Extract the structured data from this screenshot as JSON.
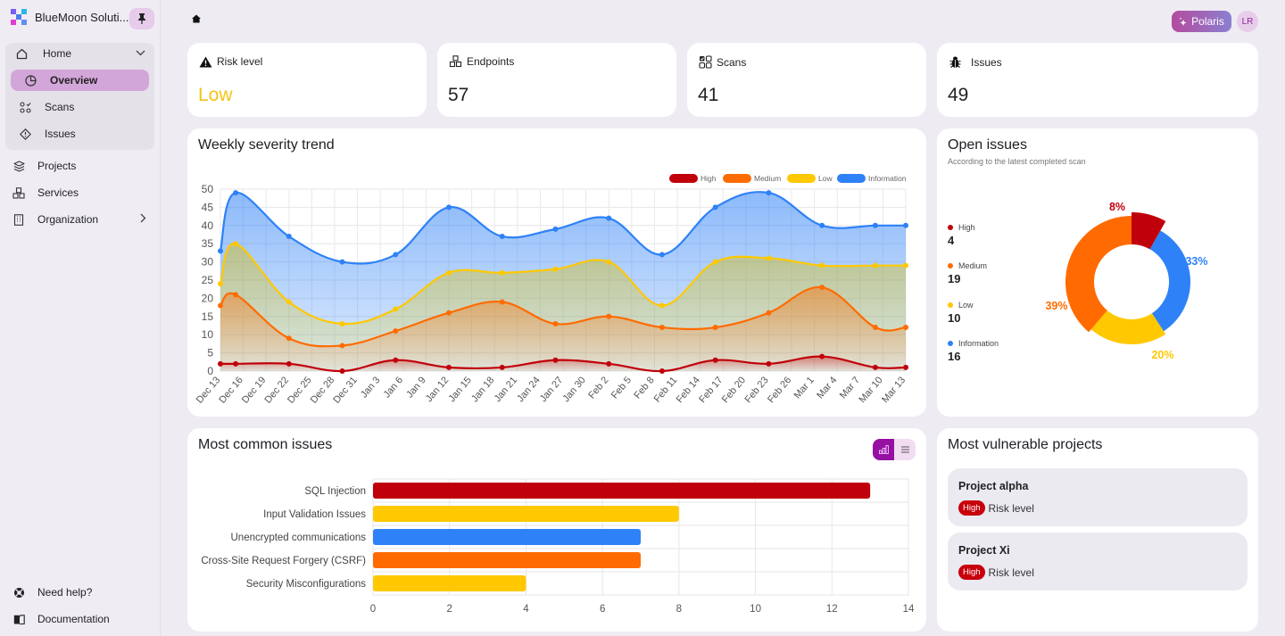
{
  "sidebar": {
    "brand": "BlueMoon Soluti...",
    "pin_icon": "pin-icon",
    "home": {
      "label": "Home",
      "icon": "home-icon",
      "expanded": true
    },
    "sub_items": [
      {
        "label": "Overview",
        "icon": "pie-chart-icon",
        "active": true
      },
      {
        "label": "Scans",
        "icon": "scans-icon",
        "active": false
      },
      {
        "label": "Issues",
        "icon": "diamond-alert-icon",
        "active": false
      }
    ],
    "items": [
      {
        "label": "Projects",
        "icon": "layers-icon"
      },
      {
        "label": "Services",
        "icon": "cubes-icon"
      },
      {
        "label": "Organization",
        "icon": "building-icon",
        "has_children": true
      }
    ],
    "footer": [
      {
        "label": "Need help?",
        "icon": "lifebuoy-icon"
      },
      {
        "label": "Documentation",
        "icon": "book-icon"
      }
    ]
  },
  "header": {
    "breadcrumb_icon": "home-icon",
    "polaris_label": "Polaris",
    "avatar_initials": "LR"
  },
  "kpis": [
    {
      "label": "Risk level",
      "icon": "warning-icon",
      "value": "Low"
    },
    {
      "label": "Endpoints",
      "icon": "cubes-icon",
      "value": "57"
    },
    {
      "label": "Scans",
      "icon": "scans-icon",
      "value": "41"
    },
    {
      "label": "Issues",
      "icon": "bug-icon",
      "value": "49"
    }
  ],
  "colors": {
    "high": "#c0000a",
    "medium": "#ff6b00",
    "low": "#ffc800",
    "information": "#2e81f7",
    "accent": "#9610a4"
  },
  "trend": {
    "title": "Weekly severity trend"
  },
  "open_issues": {
    "title": "Open issues",
    "subtitle": "According to the latest completed scan",
    "items": [
      {
        "label": "High",
        "value": "4"
      },
      {
        "label": "Medium",
        "value": "19"
      },
      {
        "label": "Low",
        "value": "10"
      },
      {
        "label": "Information",
        "value": "16"
      }
    ]
  },
  "common_issues": {
    "title": "Most common issues",
    "view_toggle": [
      "chart",
      "list"
    ]
  },
  "vulnerable_projects": {
    "title": "Most vulnerable projects",
    "items": [
      {
        "name": "Project alpha",
        "badge": "High",
        "label": "Risk level"
      },
      {
        "name": "Project Xi",
        "badge": "High",
        "label": "Risk level"
      }
    ]
  },
  "chart_data": [
    {
      "type": "area",
      "title": "Weekly severity trend",
      "xlabel": "",
      "ylabel": "",
      "ylim": [
        0,
        50
      ],
      "yticks": [
        0,
        5,
        10,
        15,
        20,
        25,
        30,
        35,
        40,
        45,
        50
      ],
      "x_tick_labels": [
        "Dec 13",
        "Dec 16",
        "Dec 19",
        "Dec 22",
        "Dec 25",
        "Dec 28",
        "Dec 31",
        "Jan 3",
        "Jan 6",
        "Jan 9",
        "Jan 12",
        "Jan 15",
        "Jan 18",
        "Jan 21",
        "Jan 24",
        "Jan 27",
        "Jan 30",
        "Feb 2",
        "Feb 5",
        "Feb 8",
        "Feb 11",
        "Feb 14",
        "Feb 17",
        "Feb 20",
        "Feb 23",
        "Feb 26",
        "Mar 1",
        "Mar 4",
        "Mar 7",
        "Mar 10",
        "Mar 13"
      ],
      "x_day_offsets": [
        0,
        2,
        9,
        16,
        23,
        30,
        37,
        44,
        51,
        58,
        65,
        72,
        79,
        86,
        90
      ],
      "legend": [
        "High",
        "Medium",
        "Low",
        "Information"
      ],
      "legend_position": "top-right",
      "grid": true,
      "series": [
        {
          "name": "Information",
          "values": [
            33,
            49,
            37,
            30,
            32,
            45,
            37,
            39,
            42,
            32,
            45,
            49,
            40,
            40,
            40
          ]
        },
        {
          "name": "Low",
          "values": [
            24,
            35,
            19,
            13,
            17,
            27,
            27,
            28,
            30,
            18,
            30,
            31,
            29,
            29,
            29
          ]
        },
        {
          "name": "Medium",
          "values": [
            18,
            21,
            9,
            7,
            11,
            16,
            19,
            13,
            15,
            12,
            12,
            16,
            23,
            12,
            12
          ]
        },
        {
          "name": "High",
          "values": [
            2,
            2,
            2,
            0,
            3,
            1,
            1,
            3,
            2,
            0,
            3,
            2,
            4,
            1,
            1
          ]
        }
      ]
    },
    {
      "type": "pie",
      "title": "Open issues",
      "categories": [
        "High",
        "Information",
        "Low",
        "Medium"
      ],
      "values": [
        4,
        16,
        10,
        19
      ],
      "percent_labels": [
        "8%",
        "33%",
        "20%",
        "39%"
      ]
    },
    {
      "type": "bar",
      "orientation": "horizontal",
      "title": "Most common issues",
      "categories": [
        "SQL Injection",
        "Input Validation Issues",
        "Unencrypted communications",
        "Cross-Site Request Forgery (CSRF)",
        "Security Misconfigurations"
      ],
      "values": [
        13,
        8,
        7,
        7,
        4
      ],
      "bar_severity": [
        "high",
        "low",
        "information",
        "medium",
        "low"
      ],
      "xlim": [
        0,
        14
      ],
      "xticks": [
        0,
        2,
        4,
        6,
        8,
        10,
        12,
        14
      ],
      "grid": true
    }
  ]
}
